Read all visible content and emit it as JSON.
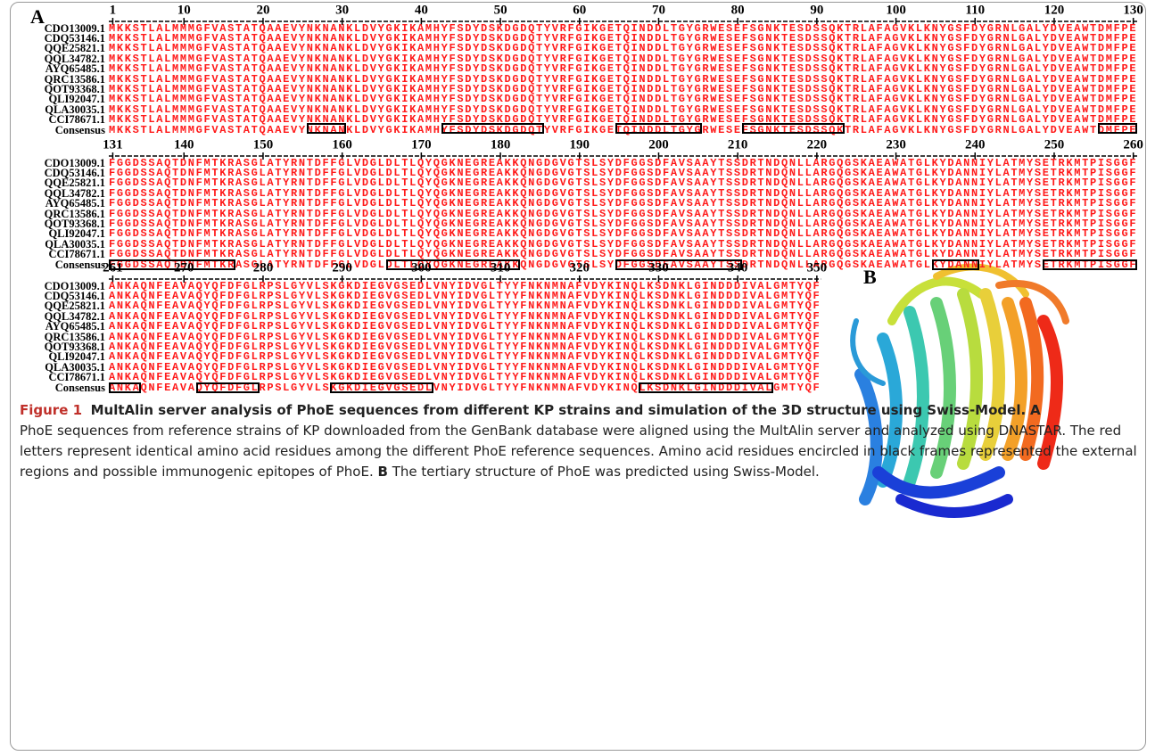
{
  "panel_a": {
    "label": "A",
    "names": [
      "CDO13009.1",
      "CDQ53146.1",
      "QQE25821.1",
      "QQL34782.1",
      "AYQ65485.1",
      "QRC13586.1",
      "QOT93368.1",
      "QLI92047.1",
      "QLA30035.1",
      "CCI78671.1"
    ],
    "consensus_label": "Consensus",
    "blocks": [
      {
        "ticks": [
          1,
          10,
          20,
          30,
          40,
          50,
          60,
          70,
          80,
          90,
          100,
          110,
          120,
          130
        ],
        "sequence": "MKKSTLALMMMGFVASTATQAAEVYNKNANKLDVYGKIKAMHYFSDYDSKDGDQTYVRFGIKGETQINDDLTGYGRWESEFSGNKTESDSSQKTRLAFAGVKLKNYGSFDYGRNLGALYDVEAWTDMFPE"
      },
      {
        "ticks": [
          131,
          140,
          150,
          160,
          170,
          180,
          190,
          200,
          210,
          220,
          230,
          240,
          250,
          260
        ],
        "sequence": "FGGDSSAQTDNFMTKRASGLATYRNTDFFGLVDGLDLTLQYQGKNEGREAKKQNGDGVGTSLSYDFGGSDFAVSAAYTSSDRTNDQNLLARGQGSKAEAWATGLKYDANNIYLATMYSETRKMTPISGGF"
      },
      {
        "ticks": [
          261,
          270,
          280,
          290,
          300,
          310,
          320,
          330,
          340,
          350
        ],
        "sequence": "ANKAQNFEAVAQYQFDFGLRPSLGYVLSKGKDIEGVGSEDLVNYIDVGLTYYFNKNMNAFVDYKINQLKSDNKLGINDDDIVALGMTYQF"
      }
    ]
  },
  "panel_b": {
    "label": "B"
  },
  "caption": {
    "figure": "Figure 1",
    "title": "MultAlin server analysis of PhoE sequences from different KP strains and simulation of the 3D structure using Swiss-Model.",
    "panel_a": "A",
    "text_a": "PhoE sequences from reference strains of KP downloaded from the GenBank database were aligned using the MultAlin server and analyzed using DNASTAR. The red letters represent identical amino acid residues among the different PhoE reference sequences. Amino acid residues encircled in black frames represented the external regions and possible immunogenic epitopes of PhoE.",
    "panel_b": "B",
    "text_b": "The tertiary structure of PhoE was predicted using Swiss-Model."
  }
}
